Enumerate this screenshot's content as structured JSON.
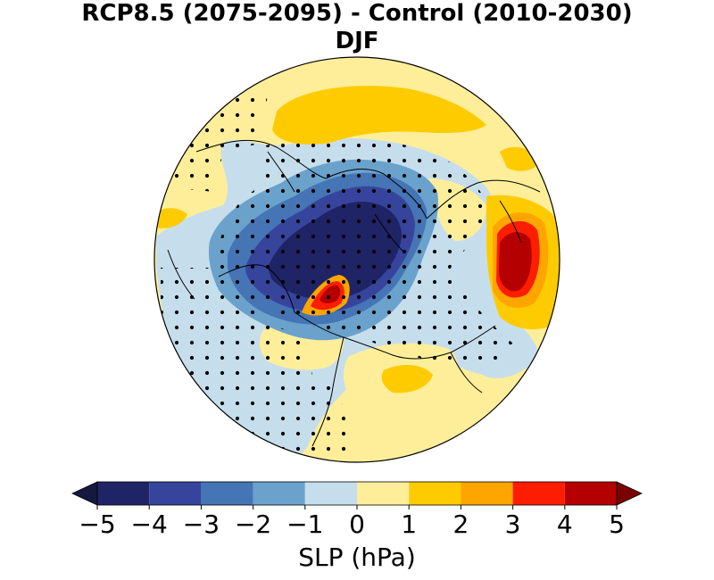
{
  "title": {
    "line1": "RCP8.5 (2075-2095) - Control (2010-2030)",
    "line2": "DJF"
  },
  "map": {
    "projection": "north-polar-stereographic",
    "variable": "sea level pressure difference",
    "stippling": "significant regions marked with dots"
  },
  "colorbar": {
    "label": "SLP (hPa)",
    "extend": "both",
    "ticks": [
      "−5",
      "−4",
      "−3",
      "−2",
      "−1",
      "0",
      "1",
      "2",
      "3",
      "4",
      "5"
    ],
    "bins": [
      {
        "from": -5,
        "to": -4,
        "color": "#1f2466"
      },
      {
        "from": -4,
        "to": -3,
        "color": "#37449c"
      },
      {
        "from": -3,
        "to": -2,
        "color": "#4575b4"
      },
      {
        "from": -2,
        "to": -1,
        "color": "#6ba2cc"
      },
      {
        "from": -1,
        "to": 0,
        "color": "#c6deec"
      },
      {
        "from": 0,
        "to": 1,
        "color": "#ffee99"
      },
      {
        "from": 1,
        "to": 2,
        "color": "#fecb00"
      },
      {
        "from": 2,
        "to": 3,
        "color": "#fea500"
      },
      {
        "from": 3,
        "to": 4,
        "color": "#fd1d00"
      },
      {
        "from": 4,
        "to": 5,
        "color": "#b40000"
      }
    ],
    "under_color": "#15183f",
    "over_color": "#7a0000"
  }
}
